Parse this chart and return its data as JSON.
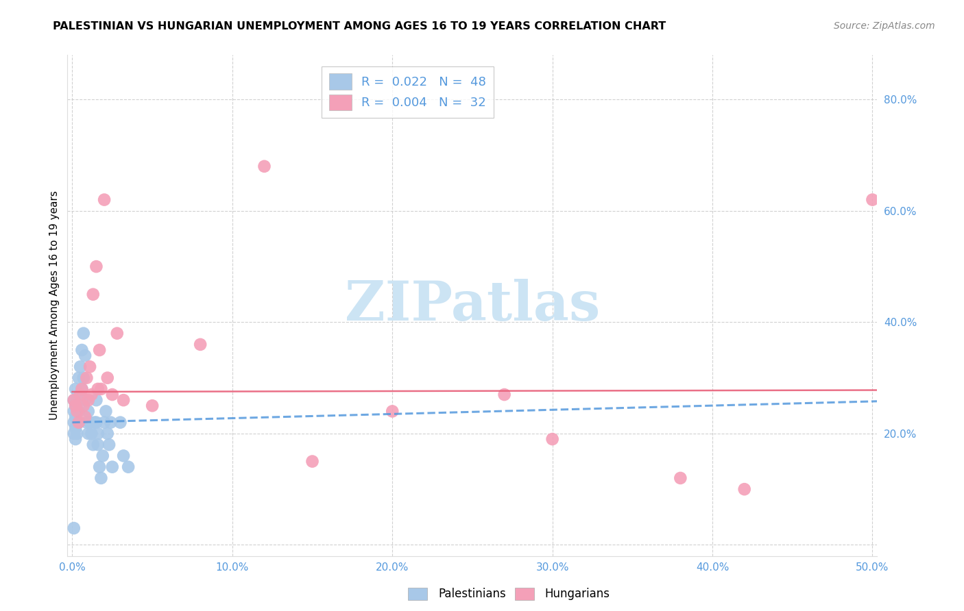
{
  "title": "PALESTINIAN VS HUNGARIAN UNEMPLOYMENT AMONG AGES 16 TO 19 YEARS CORRELATION CHART",
  "source": "Source: ZipAtlas.com",
  "ylabel": "Unemployment Among Ages 16 to 19 years",
  "xlim": [
    -0.003,
    0.503
  ],
  "ylim": [
    -0.02,
    0.88
  ],
  "xticks": [
    0.0,
    0.1,
    0.2,
    0.3,
    0.4,
    0.5
  ],
  "yticks": [
    0.0,
    0.2,
    0.4,
    0.6,
    0.8
  ],
  "xticklabels": [
    "0.0%",
    "10.0%",
    "20.0%",
    "30.0%",
    "40.0%",
    "50.0%"
  ],
  "yticklabels": [
    "",
    "20.0%",
    "40.0%",
    "60.0%",
    "80.0%"
  ],
  "palestinian_color": "#a8c8e8",
  "hungarian_color": "#f4a0b8",
  "trendline_pal_color": "#5599dd",
  "trendline_hun_color": "#e8607a",
  "watermark_color": "#cce4f4",
  "palestinians_x": [
    0.001,
    0.001,
    0.001,
    0.001,
    0.002,
    0.002,
    0.002,
    0.002,
    0.002,
    0.003,
    0.003,
    0.003,
    0.003,
    0.004,
    0.004,
    0.004,
    0.005,
    0.005,
    0.006,
    0.006,
    0.007,
    0.007,
    0.008,
    0.008,
    0.009,
    0.01,
    0.01,
    0.011,
    0.012,
    0.013,
    0.014,
    0.015,
    0.015,
    0.016,
    0.016,
    0.017,
    0.018,
    0.019,
    0.02,
    0.021,
    0.022,
    0.023,
    0.024,
    0.025,
    0.03,
    0.032,
    0.035,
    0.001
  ],
  "palestinians_y": [
    0.24,
    0.26,
    0.22,
    0.2,
    0.25,
    0.23,
    0.21,
    0.19,
    0.28,
    0.26,
    0.24,
    0.22,
    0.2,
    0.3,
    0.24,
    0.22,
    0.32,
    0.26,
    0.35,
    0.28,
    0.38,
    0.3,
    0.34,
    0.26,
    0.22,
    0.24,
    0.2,
    0.22,
    0.2,
    0.18,
    0.22,
    0.26,
    0.22,
    0.2,
    0.18,
    0.14,
    0.12,
    0.16,
    0.22,
    0.24,
    0.2,
    0.18,
    0.22,
    0.14,
    0.22,
    0.16,
    0.14,
    0.03
  ],
  "hungarians_x": [
    0.001,
    0.002,
    0.003,
    0.004,
    0.005,
    0.006,
    0.007,
    0.008,
    0.009,
    0.01,
    0.011,
    0.012,
    0.013,
    0.015,
    0.016,
    0.017,
    0.018,
    0.02,
    0.022,
    0.025,
    0.028,
    0.032,
    0.05,
    0.08,
    0.12,
    0.15,
    0.2,
    0.27,
    0.3,
    0.38,
    0.42,
    0.5
  ],
  "hungarians_y": [
    0.26,
    0.25,
    0.24,
    0.22,
    0.27,
    0.28,
    0.25,
    0.23,
    0.3,
    0.26,
    0.32,
    0.27,
    0.45,
    0.5,
    0.28,
    0.35,
    0.28,
    0.62,
    0.3,
    0.27,
    0.38,
    0.26,
    0.25,
    0.36,
    0.68,
    0.15,
    0.24,
    0.27,
    0.19,
    0.12,
    0.1,
    0.62
  ],
  "pal_trend_x0": 0.0,
  "pal_trend_x1": 0.503,
  "pal_trend_y0": 0.22,
  "pal_trend_y1": 0.258,
  "hun_trend_x0": 0.0,
  "hun_trend_x1": 0.503,
  "hun_trend_y0": 0.275,
  "hun_trend_y1": 0.278
}
